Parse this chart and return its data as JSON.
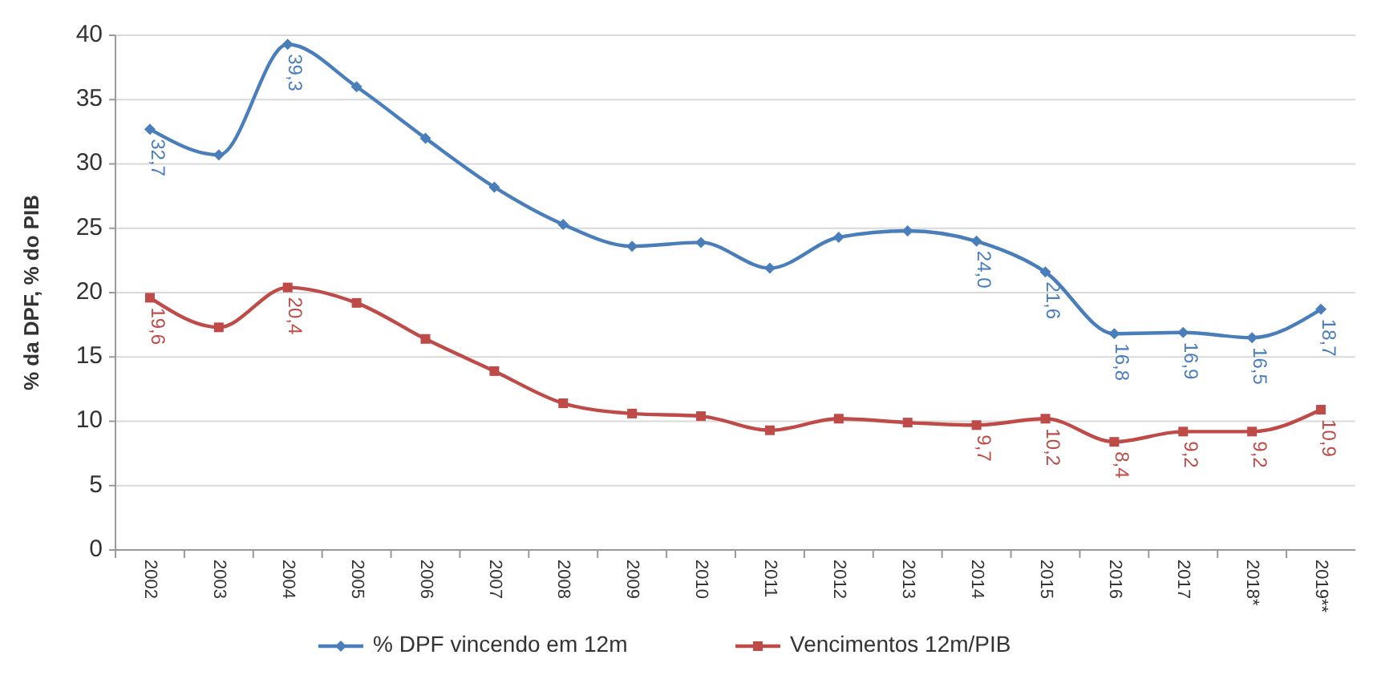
{
  "chart_data": {
    "type": "line",
    "ylabel": "% da DPF, % do PIB",
    "categories": [
      "2002",
      "2003",
      "2004",
      "2005",
      "2006",
      "2007",
      "2008",
      "2009",
      "2010",
      "2011",
      "2012",
      "2013",
      "2014",
      "2015",
      "2016",
      "2017",
      "2018*",
      "2019**"
    ],
    "series": [
      {
        "name": "% DPF vincendo em 12m",
        "color": "#4a7ebb",
        "marker": "diamond",
        "values": [
          32.7,
          30.7,
          39.3,
          36.0,
          32.0,
          28.2,
          25.3,
          23.6,
          23.9,
          21.9,
          24.3,
          24.8,
          24.0,
          21.6,
          16.8,
          16.9,
          16.5,
          18.7
        ],
        "value_labels": [
          "32,7",
          null,
          "39,3",
          null,
          null,
          null,
          null,
          null,
          null,
          null,
          null,
          null,
          "24,0",
          "21,6",
          "16,8",
          "16,9",
          "16,5",
          "18,7"
        ]
      },
      {
        "name": "Vencimentos 12m/PIB",
        "color": "#be4b48",
        "marker": "square",
        "values": [
          19.6,
          17.3,
          20.4,
          19.2,
          16.4,
          13.9,
          11.4,
          10.6,
          10.4,
          9.3,
          10.2,
          9.9,
          9.7,
          10.2,
          8.4,
          9.2,
          9.2,
          10.9
        ],
        "value_labels": [
          "19,6",
          null,
          "20,4",
          null,
          null,
          null,
          null,
          null,
          null,
          null,
          null,
          null,
          "9,7",
          "10,2",
          "8,4",
          "9,2",
          "9,2",
          "10,9"
        ]
      }
    ],
    "ylim": [
      0,
      40
    ],
    "yticks": [
      0,
      5,
      10,
      15,
      20,
      25,
      30,
      35,
      40
    ],
    "grid": "y",
    "legend": "bottom",
    "line_style": "solid"
  }
}
